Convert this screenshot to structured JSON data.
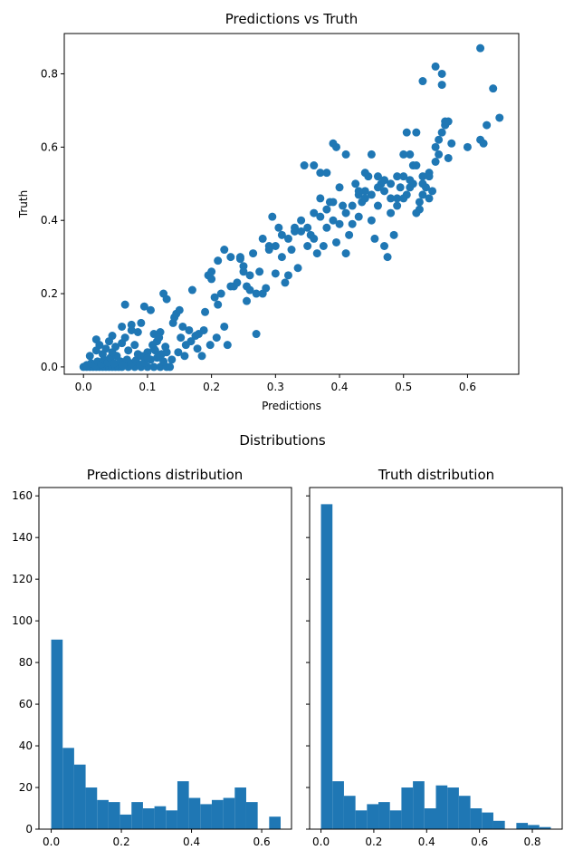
{
  "suptitle": "Distributions",
  "chart_data": [
    {
      "type": "scatter",
      "title": "Predictions vs Truth",
      "xlabel": "Predictions",
      "ylabel": "Truth",
      "xlim": [
        -0.03,
        0.68
      ],
      "ylim": [
        -0.02,
        0.91
      ],
      "xticks": [
        "0.0",
        "0.1",
        "0.2",
        "0.3",
        "0.4",
        "0.5",
        "0.6"
      ],
      "xtick_values": [
        0.0,
        0.1,
        0.2,
        0.3,
        0.4,
        0.5,
        0.6
      ],
      "yticks": [
        "0.0",
        "0.2",
        "0.4",
        "0.6",
        "0.8"
      ],
      "ytick_values": [
        0.0,
        0.2,
        0.4,
        0.6,
        0.8
      ],
      "grid": false,
      "color": "#1f77b4",
      "points": [
        [
          0.0,
          0.0
        ],
        [
          0.005,
          0.0
        ],
        [
          0.01,
          0.0
        ],
        [
          0.015,
          0.0
        ],
        [
          0.02,
          0.0
        ],
        [
          0.025,
          0.0
        ],
        [
          0.03,
          0.0
        ],
        [
          0.035,
          0.0
        ],
        [
          0.04,
          0.0
        ],
        [
          0.045,
          0.0
        ],
        [
          0.05,
          0.0
        ],
        [
          0.055,
          0.0
        ],
        [
          0.06,
          0.0
        ],
        [
          0.07,
          0.0
        ],
        [
          0.08,
          0.0
        ],
        [
          0.09,
          0.0
        ],
        [
          0.1,
          0.0
        ],
        [
          0.11,
          0.0
        ],
        [
          0.12,
          0.0
        ],
        [
          0.13,
          0.0
        ],
        [
          0.135,
          0.0
        ],
        [
          0.005,
          0.005
        ],
        [
          0.012,
          0.01
        ],
        [
          0.018,
          0.005
        ],
        [
          0.022,
          0.015
        ],
        [
          0.028,
          0.008
        ],
        [
          0.032,
          0.02
        ],
        [
          0.038,
          0.012
        ],
        [
          0.042,
          0.025
        ],
        [
          0.048,
          0.01
        ],
        [
          0.052,
          0.03
        ],
        [
          0.058,
          0.015
        ],
        [
          0.062,
          0.005
        ],
        [
          0.068,
          0.02
        ],
        [
          0.075,
          0.01
        ],
        [
          0.082,
          0.018
        ],
        [
          0.088,
          0.006
        ],
        [
          0.095,
          0.012
        ],
        [
          0.01,
          0.03
        ],
        [
          0.02,
          0.045
        ],
        [
          0.025,
          0.06
        ],
        [
          0.03,
          0.035
        ],
        [
          0.035,
          0.05
        ],
        [
          0.04,
          0.07
        ],
        [
          0.045,
          0.04
        ],
        [
          0.05,
          0.055
        ],
        [
          0.06,
          0.065
        ],
        [
          0.065,
          0.08
        ],
        [
          0.07,
          0.045
        ],
        [
          0.075,
          0.1
        ],
        [
          0.08,
          0.06
        ],
        [
          0.085,
          0.035
        ],
        [
          0.09,
          0.03
        ],
        [
          0.1,
          0.04
        ],
        [
          0.105,
          0.02
        ],
        [
          0.11,
          0.05
        ],
        [
          0.115,
          0.025
        ],
        [
          0.12,
          0.03
        ],
        [
          0.125,
          0.015
        ],
        [
          0.13,
          0.04
        ],
        [
          0.02,
          0.075
        ],
        [
          0.045,
          0.085
        ],
        [
          0.06,
          0.11
        ],
        [
          0.065,
          0.17
        ],
        [
          0.075,
          0.115
        ],
        [
          0.085,
          0.095
        ],
        [
          0.09,
          0.12
        ],
        [
          0.095,
          0.165
        ],
        [
          0.105,
          0.155
        ],
        [
          0.11,
          0.09
        ],
        [
          0.115,
          0.07
        ],
        [
          0.12,
          0.095
        ],
        [
          0.125,
          0.2
        ],
        [
          0.13,
          0.185
        ],
        [
          0.14,
          0.12
        ],
        [
          0.142,
          0.135
        ],
        [
          0.145,
          0.145
        ],
        [
          0.15,
          0.155
        ],
        [
          0.152,
          0.08
        ],
        [
          0.155,
          0.11
        ],
        [
          0.16,
          0.06
        ],
        [
          0.165,
          0.1
        ],
        [
          0.17,
          0.21
        ],
        [
          0.175,
          0.085
        ],
        [
          0.18,
          0.09
        ],
        [
          0.185,
          0.03
        ],
        [
          0.19,
          0.15
        ],
        [
          0.195,
          0.25
        ],
        [
          0.2,
          0.26
        ],
        [
          0.205,
          0.19
        ],
        [
          0.21,
          0.17
        ],
        [
          0.215,
          0.2
        ],
        [
          0.22,
          0.11
        ],
        [
          0.225,
          0.06
        ],
        [
          0.23,
          0.22
        ],
        [
          0.235,
          0.22
        ],
        [
          0.24,
          0.23
        ],
        [
          0.245,
          0.295
        ],
        [
          0.25,
          0.275
        ],
        [
          0.255,
          0.22
        ],
        [
          0.26,
          0.21
        ],
        [
          0.265,
          0.31
        ],
        [
          0.27,
          0.09
        ],
        [
          0.275,
          0.26
        ],
        [
          0.28,
          0.2
        ],
        [
          0.285,
          0.215
        ],
        [
          0.29,
          0.33
        ],
        [
          0.295,
          0.41
        ],
        [
          0.3,
          0.255
        ],
        [
          0.305,
          0.38
        ],
        [
          0.31,
          0.3
        ],
        [
          0.315,
          0.23
        ],
        [
          0.32,
          0.25
        ],
        [
          0.325,
          0.32
        ],
        [
          0.33,
          0.37
        ],
        [
          0.335,
          0.27
        ],
        [
          0.34,
          0.37
        ],
        [
          0.345,
          0.55
        ],
        [
          0.35,
          0.33
        ],
        [
          0.355,
          0.36
        ],
        [
          0.36,
          0.35
        ],
        [
          0.365,
          0.31
        ],
        [
          0.37,
          0.41
        ],
        [
          0.375,
          0.33
        ],
        [
          0.38,
          0.38
        ],
        [
          0.385,
          0.45
        ],
        [
          0.39,
          0.4
        ],
        [
          0.395,
          0.34
        ],
        [
          0.4,
          0.39
        ],
        [
          0.405,
          0.44
        ],
        [
          0.41,
          0.31
        ],
        [
          0.415,
          0.36
        ],
        [
          0.42,
          0.39
        ],
        [
          0.425,
          0.5
        ],
        [
          0.43,
          0.41
        ],
        [
          0.435,
          0.45
        ],
        [
          0.44,
          0.48
        ],
        [
          0.445,
          0.52
        ],
        [
          0.45,
          0.4
        ],
        [
          0.455,
          0.35
        ],
        [
          0.46,
          0.44
        ],
        [
          0.465,
          0.5
        ],
        [
          0.47,
          0.33
        ],
        [
          0.475,
          0.3
        ],
        [
          0.48,
          0.46
        ],
        [
          0.485,
          0.36
        ],
        [
          0.49,
          0.44
        ],
        [
          0.495,
          0.49
        ],
        [
          0.5,
          0.52
        ],
        [
          0.505,
          0.47
        ],
        [
          0.51,
          0.58
        ],
        [
          0.515,
          0.55
        ],
        [
          0.52,
          0.42
        ],
        [
          0.525,
          0.45
        ],
        [
          0.53,
          0.5
        ],
        [
          0.535,
          0.49
        ],
        [
          0.54,
          0.53
        ],
        [
          0.545,
          0.48
        ],
        [
          0.55,
          0.6
        ],
        [
          0.555,
          0.58
        ],
        [
          0.56,
          0.64
        ],
        [
          0.565,
          0.66
        ],
        [
          0.57,
          0.57
        ],
        [
          0.575,
          0.61
        ],
        [
          0.2,
          0.24
        ],
        [
          0.21,
          0.29
        ],
        [
          0.22,
          0.32
        ],
        [
          0.23,
          0.3
        ],
        [
          0.245,
          0.3
        ],
        [
          0.25,
          0.26
        ],
        [
          0.255,
          0.18
        ],
        [
          0.26,
          0.25
        ],
        [
          0.27,
          0.2
        ],
        [
          0.28,
          0.35
        ],
        [
          0.29,
          0.32
        ],
        [
          0.3,
          0.33
        ],
        [
          0.31,
          0.36
        ],
        [
          0.32,
          0.35
        ],
        [
          0.33,
          0.38
        ],
        [
          0.34,
          0.4
        ],
        [
          0.35,
          0.38
        ],
        [
          0.36,
          0.42
        ],
        [
          0.37,
          0.46
        ],
        [
          0.38,
          0.43
        ],
        [
          0.39,
          0.45
        ],
        [
          0.4,
          0.49
        ],
        [
          0.41,
          0.42
        ],
        [
          0.42,
          0.44
        ],
        [
          0.43,
          0.47
        ],
        [
          0.44,
          0.46
        ],
        [
          0.45,
          0.47
        ],
        [
          0.46,
          0.52
        ],
        [
          0.47,
          0.51
        ],
        [
          0.48,
          0.5
        ],
        [
          0.49,
          0.52
        ],
        [
          0.5,
          0.46
        ],
        [
          0.51,
          0.51
        ],
        [
          0.52,
          0.55
        ],
        [
          0.53,
          0.47
        ],
        [
          0.54,
          0.52
        ],
        [
          0.55,
          0.56
        ],
        [
          0.095,
          0.03
        ],
        [
          0.1,
          0.025
        ],
        [
          0.108,
          0.06
        ],
        [
          0.112,
          0.045
        ],
        [
          0.118,
          0.08
        ],
        [
          0.122,
          0.035
        ],
        [
          0.128,
          0.055
        ],
        [
          0.138,
          0.02
        ],
        [
          0.148,
          0.04
        ],
        [
          0.158,
          0.03
        ],
        [
          0.168,
          0.07
        ],
        [
          0.178,
          0.05
        ],
        [
          0.188,
          0.1
        ],
        [
          0.198,
          0.06
        ],
        [
          0.208,
          0.08
        ],
        [
          0.39,
          0.61
        ],
        [
          0.395,
          0.6
        ],
        [
          0.44,
          0.53
        ],
        [
          0.45,
          0.58
        ],
        [
          0.43,
          0.48
        ],
        [
          0.41,
          0.58
        ],
        [
          0.36,
          0.55
        ],
        [
          0.37,
          0.53
        ],
        [
          0.38,
          0.53
        ],
        [
          0.52,
          0.64
        ],
        [
          0.5,
          0.58
        ],
        [
          0.505,
          0.64
        ],
        [
          0.53,
          0.78
        ],
        [
          0.55,
          0.82
        ],
        [
          0.56,
          0.77
        ],
        [
          0.56,
          0.8
        ],
        [
          0.6,
          0.6
        ],
        [
          0.62,
          0.62
        ],
        [
          0.62,
          0.87
        ],
        [
          0.625,
          0.61
        ],
        [
          0.63,
          0.66
        ],
        [
          0.64,
          0.76
        ],
        [
          0.65,
          0.68
        ],
        [
          0.57,
          0.67
        ],
        [
          0.565,
          0.67
        ],
        [
          0.555,
          0.62
        ],
        [
          0.53,
          0.52
        ],
        [
          0.54,
          0.46
        ],
        [
          0.525,
          0.43
        ],
        [
          0.515,
          0.5
        ],
        [
          0.51,
          0.49
        ],
        [
          0.49,
          0.46
        ],
        [
          0.48,
          0.42
        ],
        [
          0.47,
          0.48
        ],
        [
          0.46,
          0.49
        ]
      ]
    },
    {
      "type": "bar",
      "title": "Predictions distribution",
      "xlim": [
        -0.035,
        0.685
      ],
      "ylim": [
        0,
        164
      ],
      "xticks": [
        "0.0",
        "0.2",
        "0.4",
        "0.6"
      ],
      "xtick_values": [
        0.0,
        0.2,
        0.4,
        0.6
      ],
      "yticks": [
        "0",
        "20",
        "40",
        "60",
        "80",
        "100",
        "120",
        "140",
        "160"
      ],
      "ytick_values": [
        0,
        20,
        40,
        60,
        80,
        100,
        120,
        140,
        160
      ],
      "bin_start": 0.0,
      "bin_width": 0.0327,
      "values": [
        91,
        39,
        31,
        20,
        14,
        13,
        7,
        13,
        10,
        11,
        9,
        23,
        15,
        12,
        14,
        15,
        20,
        13,
        0,
        6
      ],
      "color": "#1f77b4"
    },
    {
      "type": "bar",
      "title": "Truth distribution",
      "xlim": [
        -0.043,
        0.913
      ],
      "ylim": [
        0,
        164
      ],
      "xticks": [
        "0.0",
        "0.2",
        "0.4",
        "0.6",
        "0.8"
      ],
      "xtick_values": [
        0.0,
        0.2,
        0.4,
        0.6,
        0.8
      ],
      "bin_start": 0.0,
      "bin_width": 0.0435,
      "values": [
        156,
        23,
        16,
        9,
        12,
        13,
        9,
        20,
        23,
        10,
        21,
        20,
        16,
        10,
        8,
        4,
        0,
        3,
        2,
        1
      ],
      "color": "#1f77b4"
    }
  ]
}
